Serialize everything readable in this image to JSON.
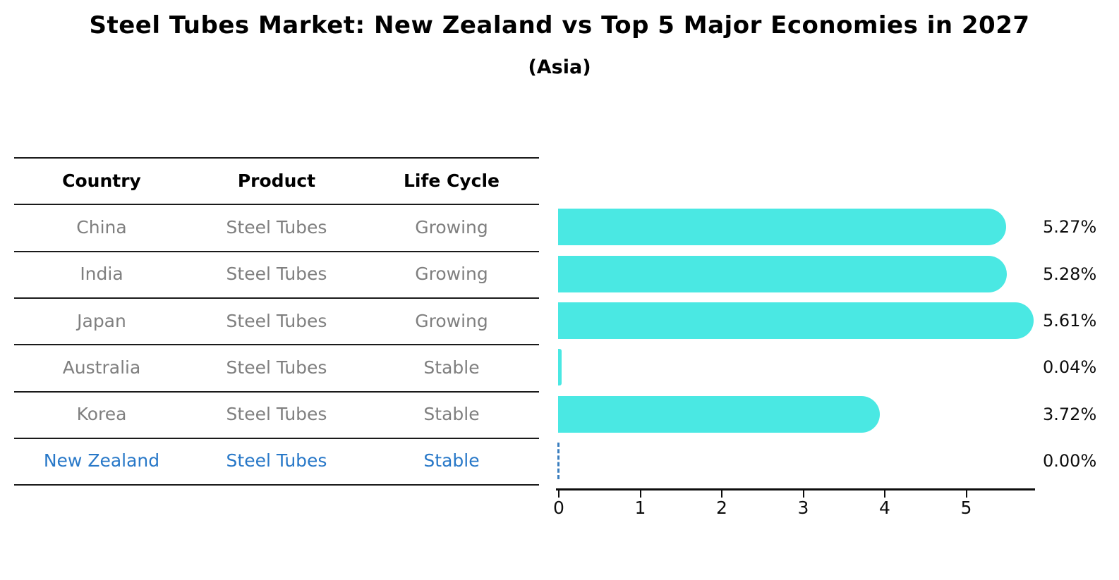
{
  "title": "Steel Tubes Market: New Zealand vs Top 5 Major Economies in 2027",
  "subtitle": "(Asia)",
  "table": {
    "headers": [
      "Country",
      "Product",
      "Life Cycle"
    ],
    "rows": [
      {
        "country": "China",
        "product": "Steel Tubes",
        "life_cycle": "Growing",
        "highlight": false
      },
      {
        "country": "India",
        "product": "Steel Tubes",
        "life_cycle": "Growing",
        "highlight": false
      },
      {
        "country": "Japan",
        "product": "Steel Tubes",
        "life_cycle": "Growing",
        "highlight": false
      },
      {
        "country": "Australia",
        "product": "Steel Tubes",
        "life_cycle": "Stable",
        "highlight": false
      },
      {
        "country": "Korea",
        "product": "Steel Tubes",
        "life_cycle": "Stable",
        "highlight": false
      },
      {
        "country": "New Zealand",
        "product": "Steel Tubes",
        "life_cycle": "Stable",
        "highlight": true
      }
    ]
  },
  "chart_data": {
    "type": "bar",
    "orientation": "horizontal",
    "title": "Steel Tubes Market: New Zealand vs Top 5 Major Economies in 2027",
    "subtitle": "(Asia)",
    "categories": [
      "China",
      "India",
      "Japan",
      "Australia",
      "Korea",
      "New Zealand"
    ],
    "values": [
      5.27,
      5.28,
      5.61,
      0.04,
      3.72,
      0.0
    ],
    "value_labels": [
      "5.27%",
      "5.28%",
      "5.61%",
      "0.04%",
      "3.72%",
      "0.00%"
    ],
    "x_ticks": [
      "0",
      "1",
      "2",
      "3",
      "4",
      "5"
    ],
    "xlim": [
      0,
      5.9
    ],
    "grid": false,
    "legend": false,
    "bar_color": "#4ae8e3",
    "highlight_index": 5,
    "highlight_marker": "dashed-vertical-line-at-zero",
    "highlight_marker_color": "#3a7ebf"
  },
  "colors": {
    "bar": "#4ae8e3",
    "highlight_text": "#2878c8",
    "highlight_marker": "#3a7ebf",
    "table_text": "#7f7f7f",
    "header_text": "#000000",
    "axis": "#0d0d0d"
  }
}
